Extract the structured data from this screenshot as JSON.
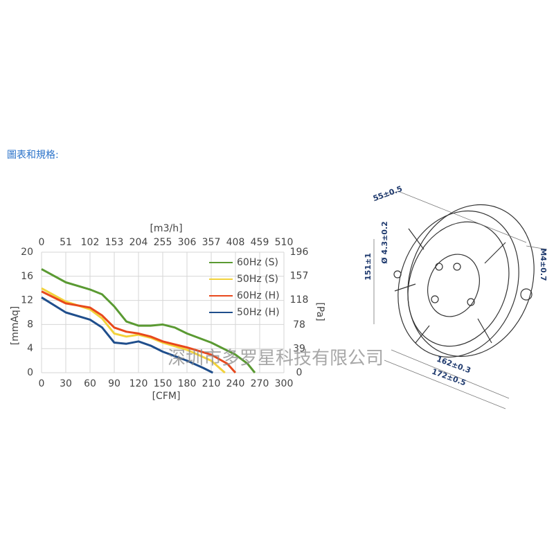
{
  "heading": "圖表和規格:",
  "watermark": "深圳市多罗星科技有限公司",
  "drawing": {
    "dimensions": [
      "55±0.5",
      "151±1",
      "Ø 4.3±0.2",
      "M4±0.7",
      "162±0.3",
      "172±0.5"
    ]
  },
  "chart_data": {
    "type": "line",
    "x_label": "[CFM]",
    "x2_label": "[m3/h]",
    "y_label": "[mmAq]",
    "y2_label": "[Pa]",
    "xlim": [
      0,
      300
    ],
    "xticks": [
      0,
      30,
      60,
      90,
      120,
      150,
      180,
      210,
      240,
      270,
      300
    ],
    "x2lim": [
      0,
      510
    ],
    "x2ticks": [
      0,
      51,
      102,
      153,
      204,
      255,
      306,
      357,
      408,
      459,
      510
    ],
    "ylim": [
      0,
      20
    ],
    "yticks": [
      0,
      4,
      8,
      12,
      16,
      20
    ],
    "y2lim": [
      0,
      196
    ],
    "y2ticks": [
      0,
      39,
      78,
      118,
      157,
      196
    ],
    "grid": true,
    "legend": "top-right",
    "series": [
      {
        "name": "60Hz (S)",
        "color": "#5a9a32",
        "x": [
          0,
          30,
          60,
          75,
          90,
          105,
          120,
          135,
          150,
          165,
          180,
          210,
          240,
          255,
          264
        ],
        "values": [
          17.2,
          15,
          13.8,
          13,
          11,
          8.5,
          7.8,
          7.8,
          8,
          7.5,
          6.5,
          5,
          3,
          1.5,
          0
        ]
      },
      {
        "name": "50Hz (S)",
        "color": "#f2d23a",
        "x": [
          0,
          30,
          60,
          75,
          90,
          105,
          120,
          135,
          150,
          180,
          210,
          227
        ],
        "values": [
          14,
          11.8,
          10.5,
          9,
          6.5,
          6,
          6.3,
          5.8,
          5,
          3.8,
          2,
          0
        ]
      },
      {
        "name": "60Hz (H)",
        "color": "#e8481c",
        "x": [
          0,
          30,
          60,
          75,
          90,
          105,
          120,
          135,
          150,
          180,
          210,
          230,
          240
        ],
        "values": [
          13.5,
          11.5,
          10.8,
          9.5,
          7.5,
          6.8,
          6.5,
          6,
          5.2,
          4.2,
          3,
          1.5,
          0
        ]
      },
      {
        "name": "50Hz (H)",
        "color": "#1f4e8c",
        "x": [
          0,
          30,
          60,
          75,
          90,
          105,
          120,
          135,
          150,
          180,
          200,
          212
        ],
        "values": [
          12.5,
          10,
          8.8,
          7.5,
          5,
          4.8,
          5.2,
          4.5,
          3.5,
          2,
          0.8,
          0
        ]
      }
    ]
  }
}
